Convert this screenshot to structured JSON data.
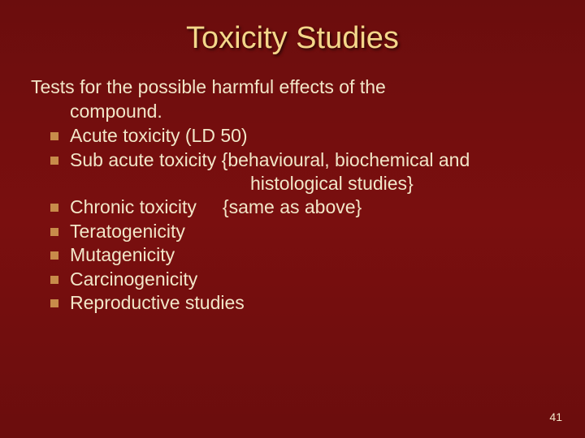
{
  "colors": {
    "background_top": "#6b0d0d",
    "background_mid": "#7a0f0f",
    "title_color": "#f4d78a",
    "text_color": "#f2e6c8",
    "bullet_color": "#c88b4a"
  },
  "typography": {
    "title_fontsize": 38,
    "body_fontsize": 23,
    "pagenum_fontsize": 14,
    "font_family": "Verdana"
  },
  "title": "Toxicity Studies",
  "intro_line1": "Tests for the possible harmful effects of the",
  "intro_line2": "compound.",
  "bullets": {
    "b0": "Acute toxicity (LD 50)",
    "b1": "Sub acute toxicity {behavioural, biochemical and",
    "b1_sub": "histological studies}",
    "b2": "Chronic toxicity     {same as above}",
    "b3": "Teratogenicity",
    "b4": "Mutagenicity",
    "b5": "Carcinogenicity",
    "b6": "Reproductive studies"
  },
  "page_number": "41"
}
